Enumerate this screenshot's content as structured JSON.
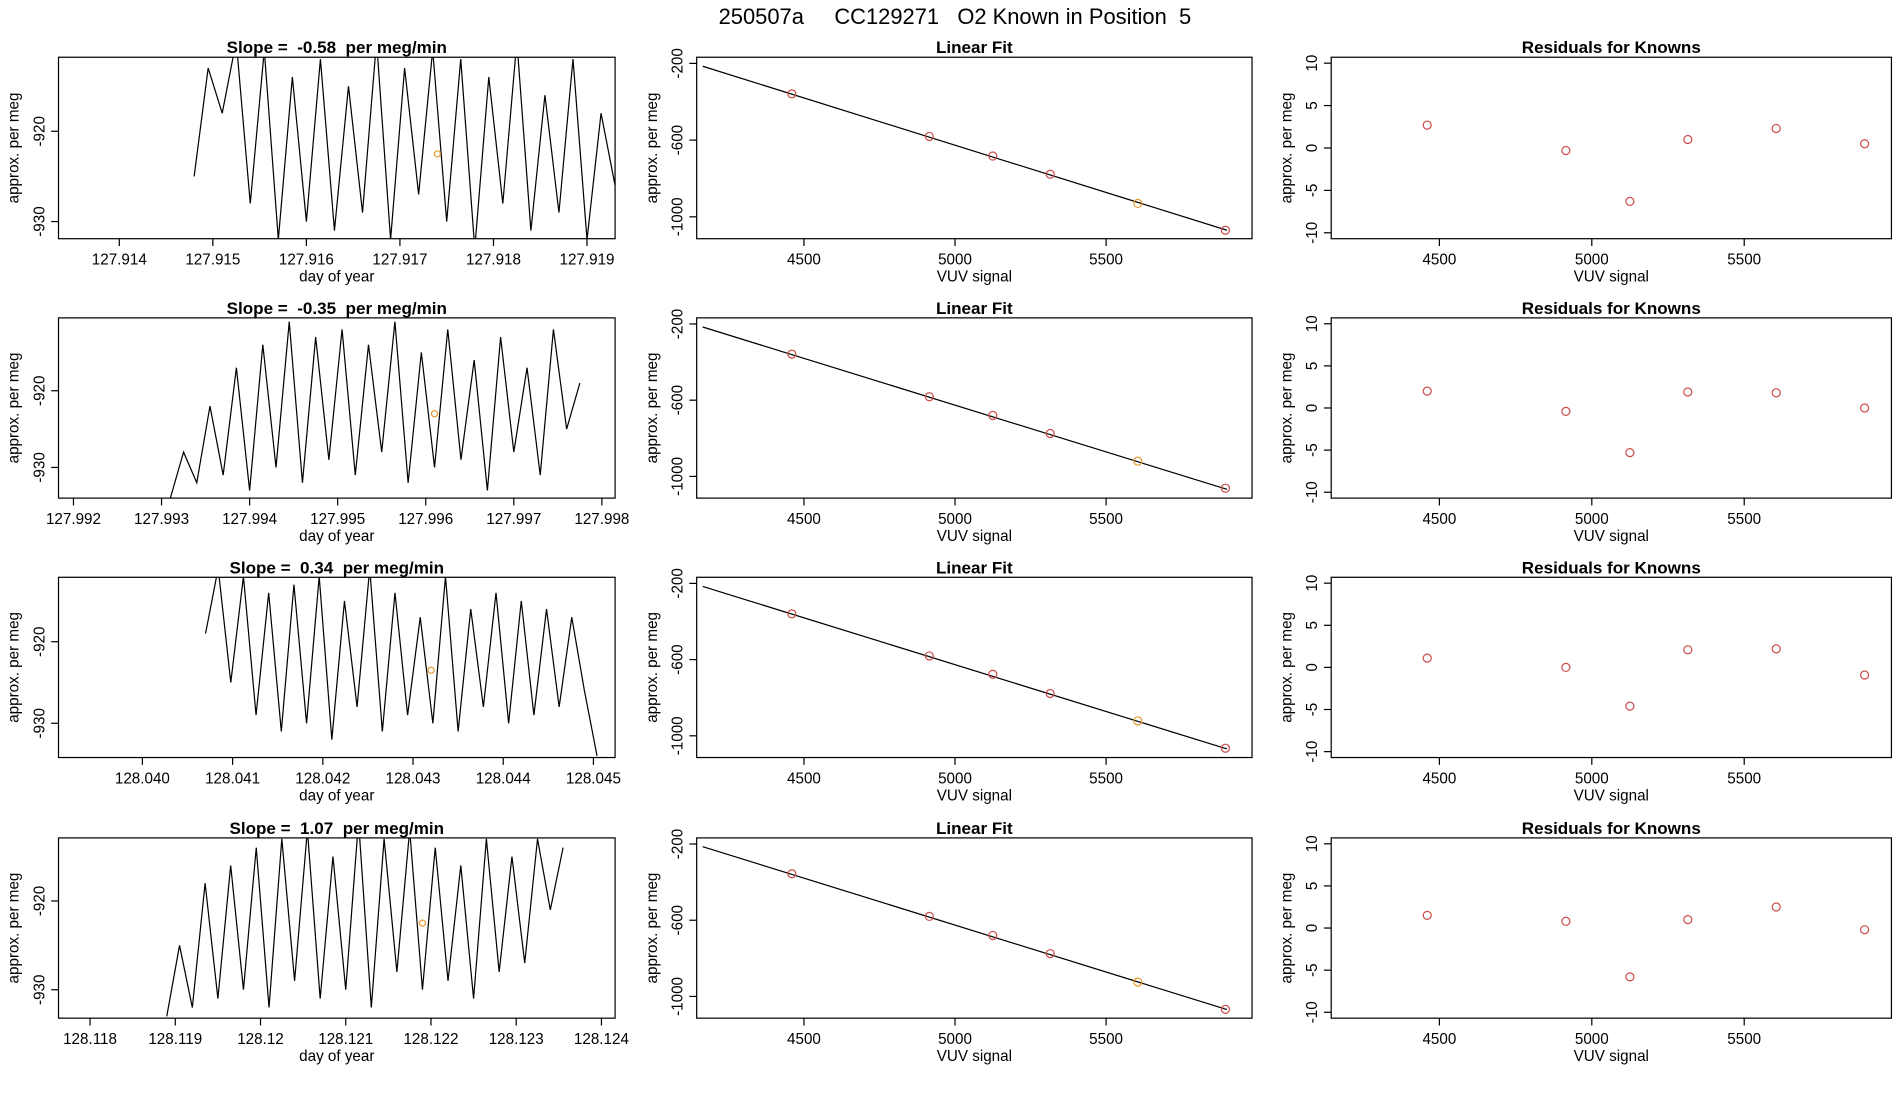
{
  "title": "250507a     CC129271   O2 Known in Position  5",
  "chart_data": [
    {
      "type": "line",
      "title": "Slope =  -0.58  per meg/min",
      "xlabel": "day of year",
      "ylabel": "approx. per meg",
      "xlim": [
        127.91335,
        127.9193
      ],
      "ylim": [
        -931.9,
        -911.8
      ],
      "xticks": [
        127.914,
        127.915,
        127.916,
        127.917,
        127.918,
        127.919
      ],
      "yticks": [
        -920,
        -930
      ],
      "series": [
        {
          "color": "#000000",
          "x": [
            127.9148,
            127.91495,
            127.9151,
            127.91525,
            127.9154,
            127.91555,
            127.9157,
            127.91585,
            127.916,
            127.91615,
            127.9163,
            127.91645,
            127.9166,
            127.91675,
            127.9169,
            127.91705,
            127.9172,
            127.91735,
            127.9175,
            127.91765,
            127.9178,
            127.91795,
            127.9181,
            127.91825,
            127.9184,
            127.91855,
            127.9187,
            127.91885,
            127.919,
            127.91915,
            127.9193,
            127.91945
          ],
          "values": [
            -925,
            -913,
            -918,
            -910,
            -928,
            -911,
            -932,
            -914,
            -930,
            -912,
            -931,
            -915,
            -929,
            -910,
            -932,
            -913,
            -927,
            -911,
            -930,
            -912,
            -933,
            -914,
            -928,
            -910,
            -931,
            -916,
            -929,
            -912,
            -932,
            -918,
            -926,
            -931
          ]
        }
      ],
      "highlight": {
        "x": 127.9174,
        "value": -922.5,
        "color": "#e69a2e"
      }
    },
    {
      "type": "scatter",
      "title": "Linear Fit",
      "xlabel": "VUV signal",
      "ylabel": "approx. per meg",
      "xlim": [
        4145,
        5983
      ],
      "ylim": [
        -1114,
        -168
      ],
      "xticks": [
        4500,
        5000,
        5500
      ],
      "yticks": [
        -200,
        -600,
        -1000
      ],
      "series": [
        {
          "x": [
            4460,
            4915,
            5125,
            5315,
            5605,
            5895
          ],
          "values": [
            -359,
            -581,
            -683,
            -778,
            -930,
            -1070
          ],
          "point_colors": [
            "#cc4c4c",
            "#cc4c4c",
            "#cc4c4c",
            "#cc4c4c",
            "#e69a2e",
            "#cc4c4c"
          ]
        }
      ],
      "fit_line": {
        "x": [
          4165,
          5900
        ],
        "values": [
          -215,
          -1070
        ],
        "color": "#000000"
      }
    },
    {
      "type": "scatter",
      "title": "Residuals for Knowns",
      "xlabel": "VUV signal",
      "ylabel": "approx. per meg",
      "xlim": [
        4145,
        5983
      ],
      "ylim": [
        -10.7,
        10.7
      ],
      "xticks": [
        4500,
        5000,
        5500
      ],
      "yticks": [
        10,
        5,
        0,
        -5,
        -10
      ],
      "series": [
        {
          "x": [
            4460,
            4915,
            5125,
            5315,
            5605,
            5895
          ],
          "values": [
            2.7,
            -0.3,
            -6.3,
            1.0,
            2.3,
            0.5
          ],
          "color": "#cc4c4c"
        }
      ]
    },
    {
      "type": "line",
      "title": "Slope =  -0.35  per meg/min",
      "xlabel": "day of year",
      "ylabel": "approx. per meg",
      "xlim": [
        127.99183,
        127.99815
      ],
      "ylim": [
        -934.0,
        -910.5
      ],
      "xticks": [
        127.992,
        127.993,
        127.994,
        127.995,
        127.996,
        127.997,
        127.998
      ],
      "yticks": [
        -920,
        -930
      ],
      "series": [
        {
          "color": "#000000",
          "x": [
            127.9931,
            127.99325,
            127.9934,
            127.99355,
            127.9937,
            127.99385,
            127.994,
            127.99415,
            127.9943,
            127.99445,
            127.9946,
            127.99475,
            127.9949,
            127.99505,
            127.9952,
            127.99535,
            127.9955,
            127.99565,
            127.9958,
            127.99595,
            127.9961,
            127.99625,
            127.9964,
            127.99655,
            127.9967,
            127.99685,
            127.997,
            127.99715,
            127.9973,
            127.99745,
            127.9976,
            127.99775
          ],
          "values": [
            -934,
            -928,
            -932,
            -922,
            -931,
            -917,
            -933,
            -914,
            -930,
            -911,
            -932,
            -913,
            -929,
            -912,
            -931,
            -914,
            -928,
            -911,
            -932,
            -915,
            -930,
            -912,
            -929,
            -916,
            -933,
            -913,
            -928,
            -917,
            -931,
            -912,
            -925,
            -919
          ]
        }
      ],
      "highlight": {
        "x": 127.9961,
        "value": -923,
        "color": "#e69a2e"
      }
    },
    {
      "type": "scatter",
      "title": "Linear Fit",
      "xlabel": "VUV signal",
      "ylabel": "approx. per meg",
      "xlim": [
        4145,
        5983
      ],
      "ylim": [
        -1114,
        -168
      ],
      "xticks": [
        4500,
        5000,
        5500
      ],
      "yticks": [
        -200,
        -600,
        -1000
      ],
      "series": [
        {
          "x": [
            4460,
            4915,
            5125,
            5315,
            5605,
            5895
          ],
          "values": [
            -358,
            -582,
            -680,
            -775,
            -920,
            -1062
          ],
          "point_colors": [
            "#cc4c4c",
            "#cc4c4c",
            "#cc4c4c",
            "#cc4c4c",
            "#e69a2e",
            "#cc4c4c"
          ]
        }
      ],
      "fit_line": {
        "x": [
          4165,
          5900
        ],
        "values": [
          -216,
          -1068
        ],
        "color": "#000000"
      }
    },
    {
      "type": "scatter",
      "title": "Residuals for Knowns",
      "xlabel": "VUV signal",
      "ylabel": "approx. per meg",
      "xlim": [
        4145,
        5983
      ],
      "ylim": [
        -10.7,
        10.7
      ],
      "xticks": [
        4500,
        5000,
        5500
      ],
      "yticks": [
        10,
        5,
        0,
        -5,
        -10
      ],
      "series": [
        {
          "x": [
            4460,
            4915,
            5125,
            5315,
            5605,
            5895
          ],
          "values": [
            2.0,
            -0.4,
            -5.3,
            1.9,
            1.8,
            0.0
          ],
          "color": "#cc4c4c"
        }
      ]
    },
    {
      "type": "line",
      "title": "Slope =  0.34  per meg/min",
      "xlabel": "day of year",
      "ylabel": "approx. per meg",
      "xlim": [
        128.03907,
        128.04524
      ],
      "ylim": [
        -934.2,
        -912.1
      ],
      "xticks": [
        {
          "value": 128.04,
          "label": "128.040"
        },
        128.041,
        128.042,
        128.043,
        128.044,
        128.045
      ],
      "yticks": [
        -920,
        -930
      ],
      "series": [
        {
          "color": "#000000",
          "x": [
            128.0407,
            128.04084,
            128.04098,
            128.04112,
            128.04126,
            128.0414,
            128.04154,
            128.04168,
            128.04182,
            128.04196,
            128.0421,
            128.04224,
            128.04238,
            128.04252,
            128.04266,
            128.0428,
            128.04294,
            128.04308,
            128.04322,
            128.04336,
            128.0435,
            128.04364,
            128.04378,
            128.04392,
            128.04406,
            128.0442,
            128.04434,
            128.04448,
            128.04462,
            128.04476,
            128.0449,
            128.04504
          ],
          "values": [
            -919,
            -911,
            -925,
            -912,
            -929,
            -914,
            -931,
            -913,
            -930,
            -912,
            -932,
            -915,
            -928,
            -911,
            -931,
            -914,
            -929,
            -917,
            -930,
            -912,
            -931,
            -916,
            -928,
            -914,
            -930,
            -915,
            -929,
            -916,
            -928,
            -917,
            -926,
            -934
          ]
        }
      ],
      "highlight": {
        "x": 128.0432,
        "value": -923.5,
        "color": "#e69a2e"
      }
    },
    {
      "type": "scatter",
      "title": "Linear Fit",
      "xlabel": "VUV signal",
      "ylabel": "approx. per meg",
      "xlim": [
        4145,
        5983
      ],
      "ylim": [
        -1114,
        -168
      ],
      "xticks": [
        4500,
        5000,
        5500
      ],
      "yticks": [
        -200,
        -600,
        -1000
      ],
      "series": [
        {
          "x": [
            4460,
            4915,
            5125,
            5315,
            5605,
            5895
          ],
          "values": [
            -360,
            -581,
            -677,
            -778,
            -922,
            -1065
          ],
          "point_colors": [
            "#cc4c4c",
            "#cc4c4c",
            "#cc4c4c",
            "#cc4c4c",
            "#e69a2e",
            "#cc4c4c"
          ]
        }
      ],
      "fit_line": {
        "x": [
          4165,
          5900
        ],
        "values": [
          -216,
          -1069
        ],
        "color": "#000000"
      }
    },
    {
      "type": "scatter",
      "title": "Residuals for Knowns",
      "xlabel": "VUV signal",
      "ylabel": "approx. per meg",
      "xlim": [
        4145,
        5983
      ],
      "ylim": [
        -10.7,
        10.7
      ],
      "xticks": [
        4500,
        5000,
        5500
      ],
      "yticks": [
        10,
        5,
        0,
        -5,
        -10
      ],
      "series": [
        {
          "x": [
            4460,
            4915,
            5125,
            5315,
            5605,
            5895
          ],
          "values": [
            1.1,
            0.0,
            -4.6,
            2.1,
            2.2,
            -0.9
          ],
          "color": "#cc4c4c"
        }
      ]
    },
    {
      "type": "line",
      "title": "Slope =  1.07  per meg/min",
      "xlabel": "day of year",
      "ylabel": "approx. per meg",
      "xlim": [
        128.11763,
        128.12416
      ],
      "ylim": [
        -933.2,
        -912.9
      ],
      "xticks": [
        128.118,
        128.119,
        128.12,
        128.121,
        128.122,
        128.123,
        128.124
      ],
      "yticks": [
        -920,
        -930
      ],
      "xtick_labels_note": null,
      "series": [
        {
          "color": "#000000",
          "x": [
            128.1189,
            128.11905,
            128.1192,
            128.11935,
            128.1195,
            128.11965,
            128.1198,
            128.11995,
            128.1201,
            128.12025,
            128.1204,
            128.12055,
            128.1207,
            128.12085,
            128.121,
            128.12115,
            128.1213,
            128.12145,
            128.1216,
            128.12175,
            128.1219,
            128.12205,
            128.1222,
            128.12235,
            128.1225,
            128.12265,
            128.1228,
            128.12295,
            128.1231,
            128.12325,
            128.1234,
            128.12355
          ],
          "values": [
            -933,
            -925,
            -932,
            -918,
            -931,
            -916,
            -930,
            -914,
            -932,
            -913,
            -929,
            -912,
            -931,
            -915,
            -930,
            -911,
            -932,
            -913,
            -928,
            -912,
            -930,
            -914,
            -929,
            -916,
            -931,
            -913,
            -928,
            -915,
            -927,
            -913,
            -921,
            -914
          ]
        }
      ],
      "highlight": {
        "x": 128.1219,
        "value": -922.5,
        "color": "#e69a2e"
      }
    },
    {
      "type": "scatter",
      "title": "Linear Fit",
      "xlabel": "VUV signal",
      "ylabel": "approx. per meg",
      "xlim": [
        4145,
        5983
      ],
      "ylim": [
        -1114,
        -168
      ],
      "xticks": [
        4500,
        5000,
        5500
      ],
      "yticks": [
        -200,
        -600,
        -1000
      ],
      "series": [
        {
          "x": [
            4460,
            4915,
            5125,
            5315,
            5605,
            5895
          ],
          "values": [
            -356,
            -580,
            -680,
            -775,
            -925,
            -1068
          ],
          "point_colors": [
            "#cc4c4c",
            "#cc4c4c",
            "#cc4c4c",
            "#cc4c4c",
            "#e69a2e",
            "#cc4c4c"
          ]
        }
      ],
      "fit_line": {
        "x": [
          4165,
          5900
        ],
        "values": [
          -214,
          -1069
        ],
        "color": "#000000"
      }
    },
    {
      "type": "scatter",
      "title": "Residuals for Knowns",
      "xlabel": "VUV signal",
      "ylabel": "approx. per meg",
      "xlim": [
        4145,
        5983
      ],
      "ylim": [
        -10.7,
        10.7
      ],
      "xticks": [
        4500,
        5000,
        5500
      ],
      "yticks": [
        10,
        5,
        0,
        -5,
        -10
      ],
      "series": [
        {
          "x": [
            4460,
            4915,
            5125,
            5315,
            5605,
            5895
          ],
          "values": [
            1.5,
            0.8,
            -5.8,
            1.0,
            2.5,
            -0.2
          ],
          "color": "#cc4c4c"
        }
      ]
    }
  ]
}
